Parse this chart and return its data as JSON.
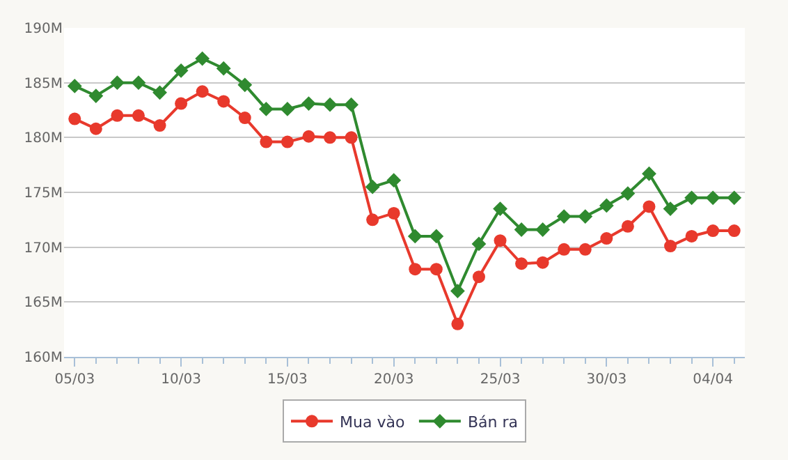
{
  "chart_data": {
    "type": "line",
    "x": [
      "--03-05",
      "--03-06",
      "--03-07",
      "--03-08",
      "--03-09",
      "--03-10",
      "--03-11",
      "--03-12",
      "--03-13",
      "--03-14",
      "--03-15",
      "--03-16",
      "--03-17",
      "--03-18",
      "--03-19",
      "--03-20",
      "--03-21",
      "--03-22",
      "--03-23",
      "--03-24",
      "--03-25",
      "--03-26",
      "--03-27",
      "--03-28",
      "--03-29",
      "--03-30",
      "--03-31",
      "--04-01",
      "--04-02",
      "--04-03",
      "--04-04",
      "--04-05"
    ],
    "series": [
      {
        "name": "Mua vào",
        "color": "#e8392c",
        "marker": "circle",
        "values": [
          181.7,
          180.8,
          182,
          182,
          181.1,
          183.1,
          184.2,
          183.3,
          181.8,
          179.6,
          179.6,
          180.1,
          180,
          180,
          172.5,
          173.1,
          168,
          168,
          163,
          167.3,
          170.6,
          168.5,
          168.6,
          169.8,
          169.8,
          170.8,
          171.9,
          173.7,
          170.1,
          171,
          171.5,
          171.5
        ]
      },
      {
        "name": "Bán ra",
        "color": "#2f8a2f",
        "marker": "diamond",
        "values": [
          184.7,
          183.8,
          185,
          185,
          184.1,
          186.1,
          187.2,
          186.3,
          184.8,
          182.6,
          182.6,
          183.1,
          183,
          183,
          175.5,
          176.1,
          171,
          171,
          166,
          170.3,
          173.5,
          171.6,
          171.6,
          172.8,
          172.8,
          173.8,
          174.9,
          176.7,
          173.5,
          174.5,
          174.5,
          174.5
        ]
      }
    ],
    "xlim": [
      "--03-04T12:00",
      "--04-05T12:00"
    ],
    "xticks": [
      {
        "value": "--03-05",
        "label": "05/03"
      },
      {
        "value": "--03-10",
        "label": "10/03"
      },
      {
        "value": "--03-15",
        "label": "15/03"
      },
      {
        "value": "--03-20",
        "label": "20/03"
      },
      {
        "value": "--03-25",
        "label": "25/03"
      },
      {
        "value": "--03-30",
        "label": "30/03"
      },
      {
        "value": "--04-04",
        "label": "04/04"
      }
    ],
    "ylim": [
      160,
      190
    ],
    "yticks": [
      {
        "value": 160,
        "label": "160M"
      },
      {
        "value": 165,
        "label": "165M"
      },
      {
        "value": 170,
        "label": "170M"
      },
      {
        "value": 175,
        "label": "175M"
      },
      {
        "value": 180,
        "label": "180M"
      },
      {
        "value": 185,
        "label": "185M"
      },
      {
        "value": 190,
        "label": "190M"
      }
    ],
    "grid": "y",
    "legend": "bottom",
    "line_style": "solid"
  }
}
